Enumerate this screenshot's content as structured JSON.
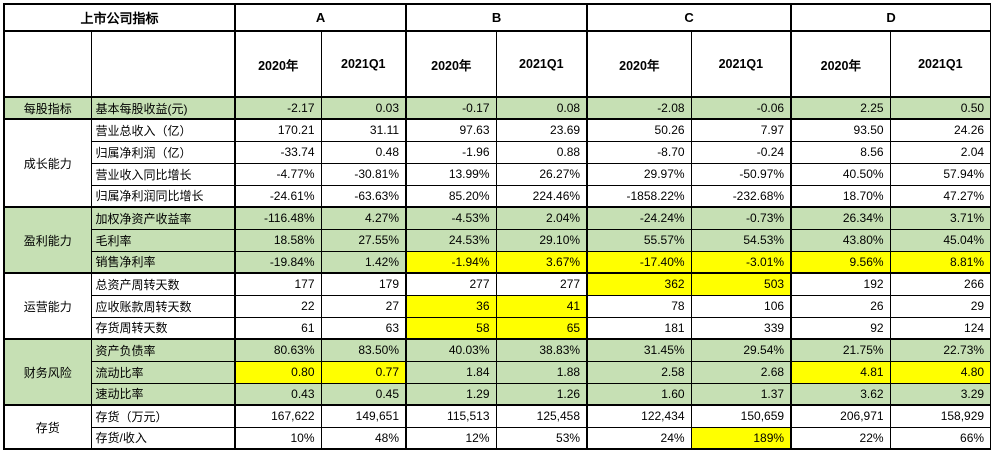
{
  "colors": {
    "green": "#c6e0b4",
    "yellow": "#ffff00",
    "border": "#000000",
    "text": "#000000"
  },
  "table": {
    "title": "上市公司指标",
    "companies": [
      "A",
      "B",
      "C",
      "D"
    ],
    "periods": [
      "2020年",
      "2021Q1",
      "2020年",
      "2021Q1",
      "2020年",
      "2021Q1",
      "2020年",
      "2021Q1"
    ],
    "groups": [
      {
        "label": "每股指标",
        "row_count": 1,
        "green": true
      },
      {
        "label": "成长能力",
        "row_count": 4,
        "green": false
      },
      {
        "label": "盈利能力",
        "row_count": 3,
        "green": true
      },
      {
        "label": "运营能力",
        "row_count": 3,
        "green": false
      },
      {
        "label": "财务风险",
        "row_count": 3,
        "green": true
      },
      {
        "label": "存货",
        "row_count": 2,
        "green": false
      }
    ],
    "rows": [
      {
        "metric": "基本每股收益(元)",
        "green": true,
        "yellow": [],
        "values": [
          "-2.17",
          "0.03",
          "-0.17",
          "0.08",
          "-2.08",
          "-0.06",
          "2.25",
          "0.50"
        ]
      },
      {
        "metric": "营业总收入（亿）",
        "green": false,
        "yellow": [],
        "values": [
          "170.21",
          "31.11",
          "97.63",
          "23.69",
          "50.26",
          "7.97",
          "93.50",
          "24.26"
        ]
      },
      {
        "metric": "归属净利润（亿）",
        "green": false,
        "yellow": [],
        "values": [
          "-33.74",
          "0.48",
          "-1.96",
          "0.88",
          "-8.70",
          "-0.24",
          "8.56",
          "2.04"
        ]
      },
      {
        "metric": "营业收入同比增长",
        "green": false,
        "yellow": [],
        "values": [
          "-4.77%",
          "-30.81%",
          "13.99%",
          "26.27%",
          "29.97%",
          "-50.97%",
          "40.50%",
          "57.94%"
        ]
      },
      {
        "metric": "归属净利润同比增长",
        "green": false,
        "yellow": [],
        "values": [
          "-24.61%",
          "-63.63%",
          "85.20%",
          "224.46%",
          "-1858.22%",
          "-232.68%",
          "18.70%",
          "47.27%"
        ]
      },
      {
        "metric": "加权净资产收益率",
        "green": true,
        "yellow": [],
        "values": [
          "-116.48%",
          "4.27%",
          "-4.53%",
          "2.04%",
          "-24.24%",
          "-0.73%",
          "26.34%",
          "3.71%"
        ]
      },
      {
        "metric": "毛利率",
        "green": true,
        "yellow": [],
        "values": [
          "18.58%",
          "27.55%",
          "24.53%",
          "29.10%",
          "55.57%",
          "54.53%",
          "43.80%",
          "45.04%"
        ]
      },
      {
        "metric": "销售净利率",
        "green": true,
        "yellow": [
          2,
          3,
          4,
          5,
          6,
          7
        ],
        "values": [
          "-19.84%",
          "1.42%",
          "-1.94%",
          "3.67%",
          "-17.40%",
          "-3.01%",
          "9.56%",
          "8.81%"
        ]
      },
      {
        "metric": "总资产周转天数",
        "green": false,
        "yellow": [
          4,
          5
        ],
        "values": [
          "177",
          "179",
          "277",
          "277",
          "362",
          "503",
          "192",
          "266"
        ]
      },
      {
        "metric": "应收账款周转天数",
        "green": false,
        "yellow": [
          2,
          3
        ],
        "values": [
          "22",
          "27",
          "36",
          "41",
          "78",
          "106",
          "26",
          "29"
        ]
      },
      {
        "metric": "存货周转天数",
        "green": false,
        "yellow": [
          2,
          3
        ],
        "values": [
          "61",
          "63",
          "58",
          "65",
          "181",
          "339",
          "92",
          "124"
        ]
      },
      {
        "metric": "资产负债率",
        "green": true,
        "yellow": [],
        "values": [
          "80.63%",
          "83.50%",
          "40.03%",
          "38.83%",
          "31.45%",
          "29.54%",
          "21.75%",
          "22.73%"
        ]
      },
      {
        "metric": "流动比率",
        "green": true,
        "yellow": [
          0,
          1,
          6,
          7
        ],
        "values": [
          "0.80",
          "0.77",
          "1.84",
          "1.88",
          "2.58",
          "2.68",
          "4.81",
          "4.80"
        ]
      },
      {
        "metric": "速动比率",
        "green": true,
        "yellow": [],
        "values": [
          "0.43",
          "0.45",
          "1.29",
          "1.26",
          "1.60",
          "1.37",
          "3.62",
          "3.29"
        ]
      },
      {
        "metric": "存货（万元）",
        "green": false,
        "yellow": [],
        "values": [
          "167,622",
          "149,651",
          "115,513",
          "125,458",
          "122,434",
          "150,659",
          "206,971",
          "158,929"
        ]
      },
      {
        "metric": "存货/收入",
        "green": false,
        "yellow": [
          5
        ],
        "values": [
          "10%",
          "48%",
          "12%",
          "53%",
          "24%",
          "189%",
          "22%",
          "66%"
        ]
      }
    ]
  }
}
